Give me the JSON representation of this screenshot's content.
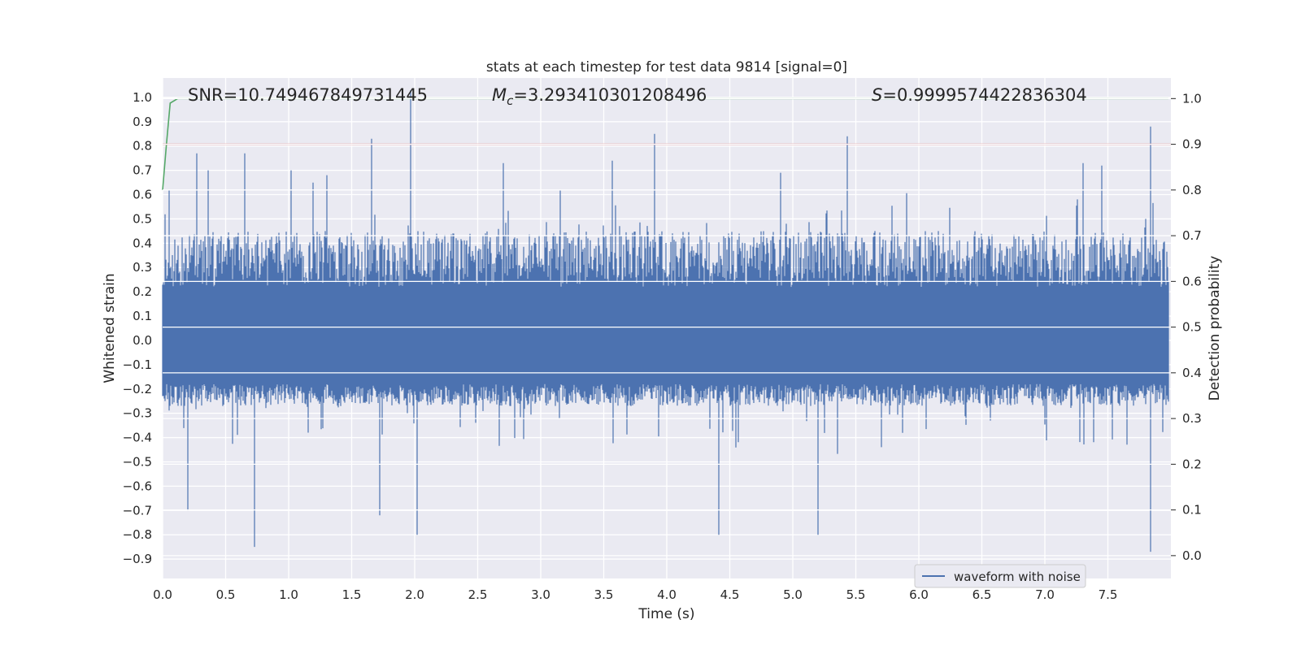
{
  "chart_data": {
    "type": "line",
    "title": "stats at each timestep for test data 9814 [signal=0]",
    "xlabel": "Time (s)",
    "ylabel": "Whitened strain",
    "y2label": "Detection probability",
    "xlim": [
      0.0,
      8.0
    ],
    "ylim": [
      -0.98,
      1.08
    ],
    "y2lim": [
      -0.05,
      1.045
    ],
    "xticks": [
      "0.0",
      "0.5",
      "1.0",
      "1.5",
      "2.0",
      "2.5",
      "3.0",
      "3.5",
      "4.0",
      "4.5",
      "5.0",
      "5.5",
      "6.0",
      "6.5",
      "7.0",
      "7.5"
    ],
    "yticks": [
      "1.0",
      "0.9",
      "0.8",
      "0.7",
      "0.6",
      "0.5",
      "0.4",
      "0.3",
      "0.2",
      "0.1",
      "0.0",
      "−0.1",
      "−0.2",
      "−0.3",
      "−0.4",
      "−0.5",
      "−0.6",
      "−0.7",
      "−0.8",
      "−0.9"
    ],
    "y2ticks": [
      "1.0",
      "0.9",
      "0.8",
      "0.7",
      "0.6",
      "0.5",
      "0.4",
      "0.3",
      "0.2",
      "0.1",
      "0.0"
    ],
    "annotations": {
      "snr": "SNR=10.749467849731445",
      "mc_symbol": "M",
      "mc_sub": "c",
      "mc_value": "=3.293410301208496",
      "s_symbol": "S",
      "s_value": "=0.9999574422836304"
    },
    "legend": {
      "label": "waveform with noise",
      "placement": "lower-right"
    },
    "grid": true,
    "series": [
      {
        "name": "waveform with noise",
        "color": "#4c72b0",
        "axis": "left",
        "style": "dense-noise",
        "range_x": [
          0.0,
          7.98
        ],
        "typical_band": [
          -0.27,
          0.45
        ],
        "peaks": [
          {
            "x": 0.05,
            "y": 0.62
          },
          {
            "x": 0.2,
            "y": -0.7
          },
          {
            "x": 0.27,
            "y": 0.77
          },
          {
            "x": 0.36,
            "y": 0.7
          },
          {
            "x": 0.65,
            "y": 0.77
          },
          {
            "x": 0.73,
            "y": -0.85
          },
          {
            "x": 1.02,
            "y": 0.7
          },
          {
            "x": 1.3,
            "y": 0.68
          },
          {
            "x": 1.66,
            "y": 0.83
          },
          {
            "x": 1.72,
            "y": -0.72
          },
          {
            "x": 1.97,
            "y": 1.03
          },
          {
            "x": 2.02,
            "y": -0.8
          },
          {
            "x": 2.7,
            "y": 0.73
          },
          {
            "x": 3.57,
            "y": 0.74
          },
          {
            "x": 3.9,
            "y": 0.85
          },
          {
            "x": 4.41,
            "y": -0.8
          },
          {
            "x": 4.9,
            "y": 0.69
          },
          {
            "x": 5.2,
            "y": -0.8
          },
          {
            "x": 5.43,
            "y": 0.84
          },
          {
            "x": 7.3,
            "y": 0.73
          },
          {
            "x": 7.45,
            "y": 0.72
          },
          {
            "x": 7.84,
            "y": 0.88
          },
          {
            "x": 7.84,
            "y": -0.87
          }
        ]
      },
      {
        "name": "",
        "color": "#55a868",
        "axis": "right",
        "x": [
          0.0,
          0.03,
          0.06,
          0.12,
          7.98
        ],
        "values": [
          0.8,
          0.9,
          0.99,
          1.0,
          1.0
        ]
      },
      {
        "name": "",
        "color": "#c44e52",
        "axis": "right",
        "x": [
          0.0,
          8.0
        ],
        "values": [
          0.9,
          0.9
        ]
      }
    ]
  }
}
